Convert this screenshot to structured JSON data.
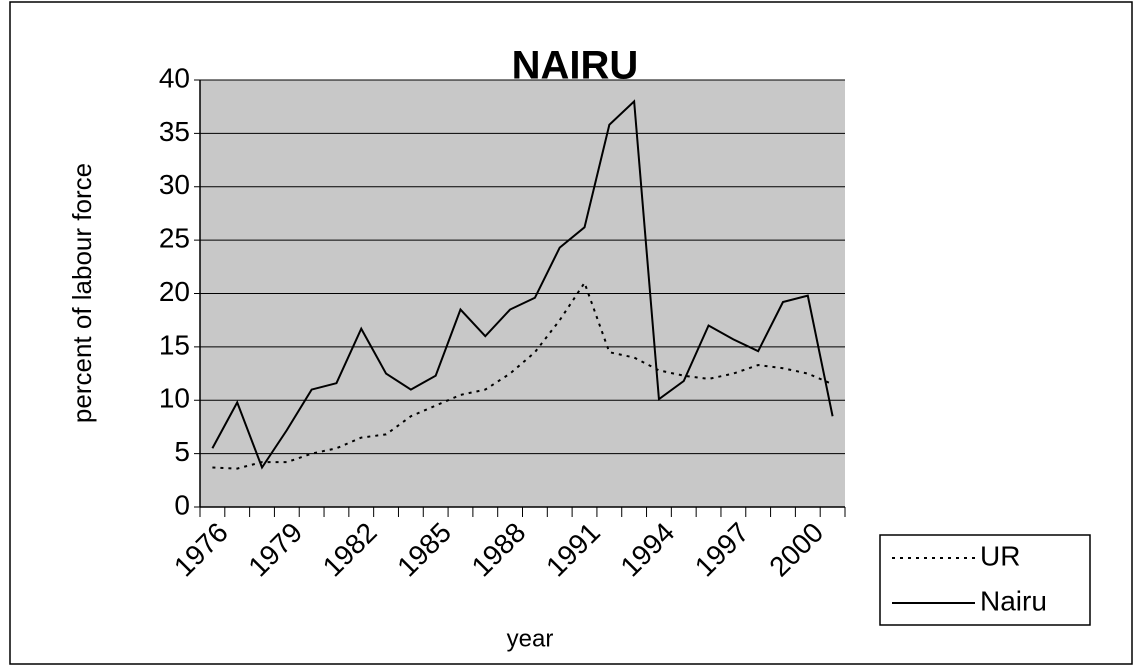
{
  "chart_data": {
    "type": "line",
    "title": "NAIRU",
    "x_label": "year",
    "y_label": "percent of labour force",
    "categories": [
      "1976",
      null,
      null,
      "1979",
      null,
      null,
      "1982",
      null,
      null,
      "1985",
      null,
      null,
      "1988",
      null,
      null,
      "1991",
      null,
      null,
      "1994",
      null,
      null,
      "1997",
      null,
      null,
      "2000",
      null
    ],
    "series": [
      {
        "name": "UR",
        "color": "#000000",
        "dash": "dotted",
        "values": [
          3.7,
          3.6,
          4.2,
          4.2,
          5,
          5.5,
          6.5,
          6.8,
          8.5,
          9.5,
          10.5,
          11,
          12.5,
          14.5,
          17.5,
          21,
          14.5,
          14,
          12.8,
          12.3,
          12,
          12.5,
          13.3,
          13,
          12.5,
          11.5
        ]
      },
      {
        "name": "Nairu",
        "color": "#000000",
        "dash": "solid",
        "values": [
          5.5,
          9.8,
          3.7,
          7.2,
          11,
          11.6,
          16.7,
          12.5,
          11,
          12.3,
          18.5,
          16,
          18.5,
          19.6,
          24.3,
          26.2,
          35.8,
          38,
          10.1,
          11.8,
          17,
          15.7,
          14.6,
          19.2,
          19.8,
          8.5
        ]
      }
    ],
    "ylim": [
      0,
      40
    ],
    "yticks": [
      0,
      5,
      10,
      15,
      20,
      25,
      30,
      35,
      40
    ],
    "grid": true,
    "legend": "bottom-right"
  }
}
